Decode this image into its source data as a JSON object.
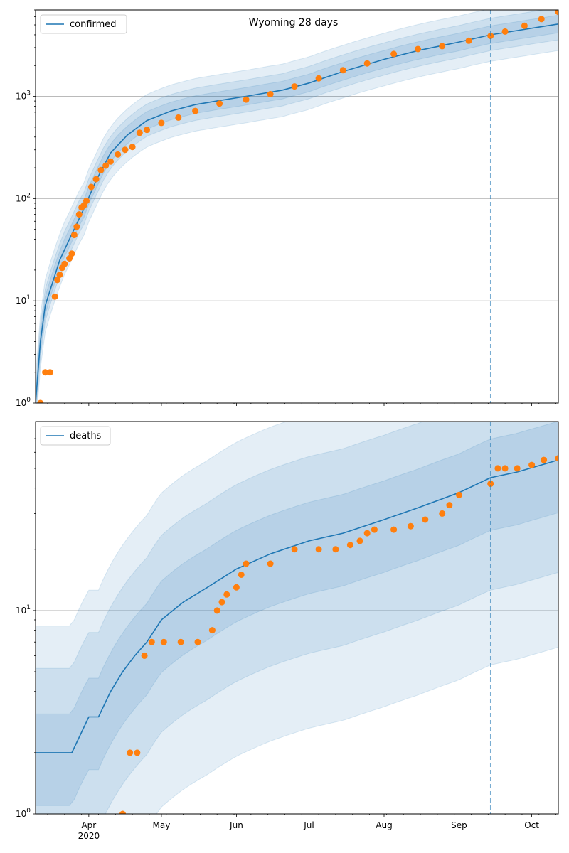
{
  "chart_data": [
    {
      "type": "line",
      "title": "Wyoming 28 days",
      "yscale": "log",
      "ylim": [
        1,
        7000
      ],
      "grid": "y-major",
      "legend": {
        "placement": "upper-left",
        "entries": [
          "confirmed"
        ]
      },
      "forecast_start": "2020-09-14",
      "x_ticks": [
        "Apr",
        "May",
        "Jun",
        "Jul",
        "Aug",
        "Sep",
        "Oct"
      ],
      "year_label": "2020",
      "y_ticks": [
        "10^0",
        "10^1",
        "10^2",
        "10^3"
      ],
      "colors": {
        "model": "#1f77b4",
        "observed": "#ff7f0e",
        "band": "#1f77b4"
      },
      "model": {
        "name": "confirmed",
        "x": [
          "2020-03-10",
          "2020-03-12",
          "2020-03-14",
          "2020-03-17",
          "2020-03-20",
          "2020-03-25",
          "2020-03-30",
          "2020-04-04",
          "2020-04-10",
          "2020-04-17",
          "2020-04-25",
          "2020-05-05",
          "2020-05-15",
          "2020-05-25",
          "2020-06-05",
          "2020-06-20",
          "2020-07-01",
          "2020-07-15",
          "2020-08-01",
          "2020-08-15",
          "2020-09-01",
          "2020-09-14",
          "2020-09-25",
          "2020-10-05",
          "2020-10-12"
        ],
        "y": [
          1,
          4,
          9,
          15,
          25,
          45,
          80,
          150,
          280,
          420,
          580,
          720,
          830,
          910,
          1000,
          1150,
          1350,
          1750,
          2300,
          2800,
          3400,
          4000,
          4400,
          4800,
          5100
        ]
      },
      "observed": {
        "x": [
          "2020-03-12",
          "2020-03-14",
          "2020-03-16",
          "2020-03-18",
          "2020-03-19",
          "2020-03-20",
          "2020-03-21",
          "2020-03-22",
          "2020-03-24",
          "2020-03-25",
          "2020-03-26",
          "2020-03-27",
          "2020-03-28",
          "2020-03-29",
          "2020-03-30",
          "2020-03-31",
          "2020-04-02",
          "2020-04-04",
          "2020-04-06",
          "2020-04-08",
          "2020-04-10",
          "2020-04-13",
          "2020-04-16",
          "2020-04-19",
          "2020-04-22",
          "2020-04-25",
          "2020-05-01",
          "2020-05-08",
          "2020-05-15",
          "2020-05-25",
          "2020-06-05",
          "2020-06-15",
          "2020-06-25",
          "2020-07-05",
          "2020-07-15",
          "2020-07-25",
          "2020-08-05",
          "2020-08-15",
          "2020-08-25",
          "2020-09-05",
          "2020-09-14",
          "2020-09-20",
          "2020-09-28",
          "2020-10-05",
          "2020-10-12"
        ],
        "y": [
          1,
          2,
          2,
          11,
          16,
          18,
          21,
          23,
          26,
          29,
          44,
          53,
          70,
          82,
          86,
          95,
          130,
          155,
          190,
          210,
          230,
          270,
          300,
          320,
          440,
          470,
          550,
          620,
          720,
          850,
          930,
          1050,
          1250,
          1500,
          1800,
          2100,
          2600,
          2900,
          3100,
          3500,
          3900,
          4300,
          4900,
          5700,
          6700
        ]
      }
    },
    {
      "type": "line",
      "title": "",
      "yscale": "log",
      "ylim": [
        1,
        85
      ],
      "grid": "y-major",
      "legend": {
        "placement": "upper-left",
        "entries": [
          "deaths"
        ]
      },
      "forecast_start": "2020-09-14",
      "x_ticks": [
        "Apr",
        "May",
        "Jun",
        "Jul",
        "Aug",
        "Sep",
        "Oct"
      ],
      "year_label": "2020",
      "y_ticks": [
        "10^0",
        "10^1"
      ],
      "colors": {
        "model": "#1f77b4",
        "observed": "#ff7f0e",
        "band": "#1f77b4"
      },
      "model": {
        "name": "deaths",
        "x": [
          "2020-03-10",
          "2020-03-25",
          "2020-04-01",
          "2020-04-05",
          "2020-04-10",
          "2020-04-15",
          "2020-04-20",
          "2020-04-25",
          "2020-05-01",
          "2020-05-10",
          "2020-05-20",
          "2020-06-01",
          "2020-06-15",
          "2020-07-01",
          "2020-07-15",
          "2020-08-01",
          "2020-08-15",
          "2020-09-01",
          "2020-09-14",
          "2020-09-25",
          "2020-10-05",
          "2020-10-12"
        ],
        "y": [
          2,
          2,
          3,
          3,
          4,
          5,
          6,
          7,
          9,
          11,
          13,
          16,
          19,
          22,
          24,
          28,
          32,
          38,
          45,
          48,
          52,
          55
        ]
      },
      "observed": {
        "x": [
          "2020-04-15",
          "2020-04-18",
          "2020-04-21",
          "2020-04-24",
          "2020-04-27",
          "2020-05-02",
          "2020-05-09",
          "2020-05-16",
          "2020-05-22",
          "2020-05-24",
          "2020-05-26",
          "2020-05-28",
          "2020-06-01",
          "2020-06-03",
          "2020-06-05",
          "2020-06-15",
          "2020-06-25",
          "2020-07-05",
          "2020-07-12",
          "2020-07-18",
          "2020-07-22",
          "2020-07-25",
          "2020-07-28",
          "2020-08-05",
          "2020-08-12",
          "2020-08-18",
          "2020-08-25",
          "2020-08-28",
          "2020-09-01",
          "2020-09-14",
          "2020-09-17",
          "2020-09-20",
          "2020-09-25",
          "2020-10-01",
          "2020-10-06",
          "2020-10-12"
        ],
        "y": [
          1,
          2,
          2,
          6,
          7,
          7,
          7,
          7,
          8,
          10,
          11,
          12,
          13,
          15,
          17,
          17,
          20,
          20,
          20,
          21,
          22,
          24,
          25,
          25,
          26,
          28,
          30,
          33,
          37,
          42,
          50,
          50,
          50,
          52,
          55,
          56
        ]
      }
    }
  ]
}
